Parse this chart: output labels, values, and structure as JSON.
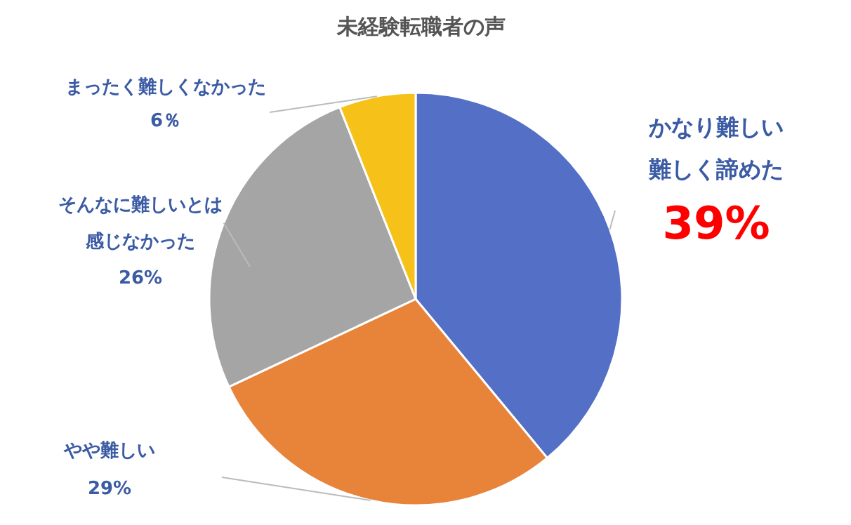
{
  "chart_data": {
    "type": "pie",
    "title": "未経験転職者の声",
    "categories": [
      "かなり難しい難しく諦めた",
      "やや難しい",
      "そんなに難しいとは感じなかった",
      "まったく難しくなかった"
    ],
    "values": [
      39,
      29,
      26,
      6
    ],
    "value_labels": [
      "39%",
      "29%",
      "26%",
      "6％"
    ],
    "colors": [
      "#5470c6",
      "#e8833a",
      "#a5a5a5",
      "#f6c21a"
    ]
  }
}
